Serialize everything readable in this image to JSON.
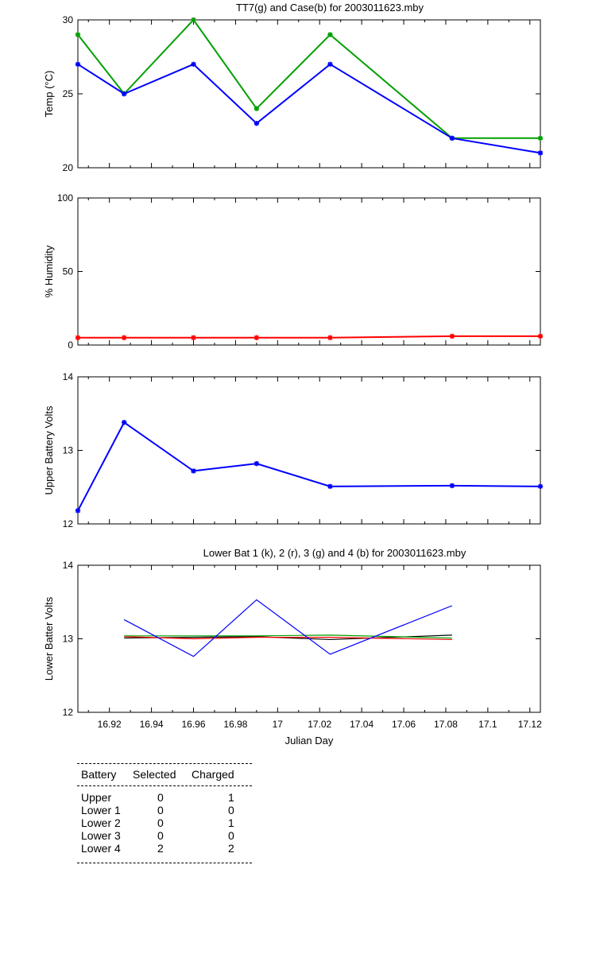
{
  "chart_data": [
    {
      "type": "line",
      "title": "TT7(g) and Case(b) for 2003011623.mby",
      "xlabel": "",
      "ylabel": "Temp  (°C)",
      "ylim": [
        20,
        30
      ],
      "yticks": [
        "20",
        "25",
        "30"
      ],
      "xlim": [
        16.905,
        17.125
      ],
      "grid": false,
      "series": [
        {
          "color": "#00a000",
          "marker": "star",
          "x": [
            16.905,
            16.927,
            16.96,
            16.99,
            17.025,
            17.083,
            17.125
          ],
          "values": [
            29,
            25,
            30,
            24,
            29,
            22,
            22
          ]
        },
        {
          "color": "#0000ff",
          "marker": "star",
          "x": [
            16.905,
            16.927,
            16.96,
            16.99,
            17.025,
            17.083,
            17.125
          ],
          "values": [
            27,
            25,
            27,
            23,
            27,
            22,
            21
          ]
        }
      ]
    },
    {
      "type": "line",
      "title": "",
      "xlabel": "",
      "ylabel": "% Humidity",
      "ylim": [
        0,
        100
      ],
      "yticks": [
        "0",
        "50",
        "100"
      ],
      "xlim": [
        16.905,
        17.125
      ],
      "grid": false,
      "series": [
        {
          "color": "#ff0000",
          "marker": "star",
          "x": [
            16.905,
            16.927,
            16.96,
            16.99,
            17.025,
            17.083,
            17.125
          ],
          "values": [
            5,
            5,
            5,
            5,
            5,
            6,
            6
          ]
        }
      ]
    },
    {
      "type": "line",
      "title": "",
      "xlabel": "",
      "ylabel": "Upper Battery Volts",
      "ylim": [
        12,
        14
      ],
      "yticks": [
        "12",
        "13",
        "14"
      ],
      "xlim": [
        16.905,
        17.125
      ],
      "grid": false,
      "series": [
        {
          "color": "#0000ff",
          "marker": "star",
          "x": [
            16.905,
            16.927,
            16.96,
            16.99,
            17.025,
            17.083,
            17.125
          ],
          "values": [
            12.18,
            13.38,
            12.72,
            12.82,
            12.51,
            12.52,
            12.51
          ]
        }
      ]
    },
    {
      "type": "line",
      "title": "Lower Bat 1 (k), 2 (r), 3 (g) and 4 (b) for 2003011623.mby",
      "xlabel": "Julian Day",
      "ylabel": "Lower Batter Volts",
      "ylim": [
        12,
        14
      ],
      "yticks": [
        "12",
        "13",
        "14"
      ],
      "xlim": [
        16.905,
        17.125
      ],
      "xticks": [
        "16.92",
        "16.94",
        "16.96",
        "16.98",
        "17",
        "17.02",
        "17.04",
        "17.06",
        "17.08",
        "17.1",
        "17.12"
      ],
      "grid": false,
      "series": [
        {
          "color": "#000000",
          "x": [
            16.927,
            16.96,
            16.99,
            17.025,
            17.083
          ],
          "values": [
            13.01,
            13.02,
            13.03,
            12.99,
            13.05
          ]
        },
        {
          "color": "#ff0000",
          "x": [
            16.927,
            16.96,
            16.99,
            17.025,
            17.083
          ],
          "values": [
            13.03,
            13.0,
            13.02,
            13.02,
            12.99
          ]
        },
        {
          "color": "#00a000",
          "x": [
            16.927,
            16.96,
            16.99,
            17.025,
            17.083
          ],
          "values": [
            13.04,
            13.04,
            13.04,
            13.05,
            13.01
          ]
        },
        {
          "color": "#0000ff",
          "x": [
            16.927,
            16.96,
            16.99,
            17.025,
            17.083
          ],
          "values": [
            13.26,
            12.76,
            13.53,
            12.79,
            13.45
          ]
        }
      ]
    }
  ],
  "table": {
    "headers": [
      "Battery",
      "Selected",
      "Charged"
    ],
    "rows": [
      {
        "battery": "Upper",
        "selected": "0",
        "charged": "1"
      },
      {
        "battery": "Lower 1",
        "selected": "0",
        "charged": "0"
      },
      {
        "battery": "Lower 2",
        "selected": "0",
        "charged": "1"
      },
      {
        "battery": "Lower 3",
        "selected": "0",
        "charged": "0"
      },
      {
        "battery": "Lower 4",
        "selected": "2",
        "charged": "2"
      }
    ]
  }
}
